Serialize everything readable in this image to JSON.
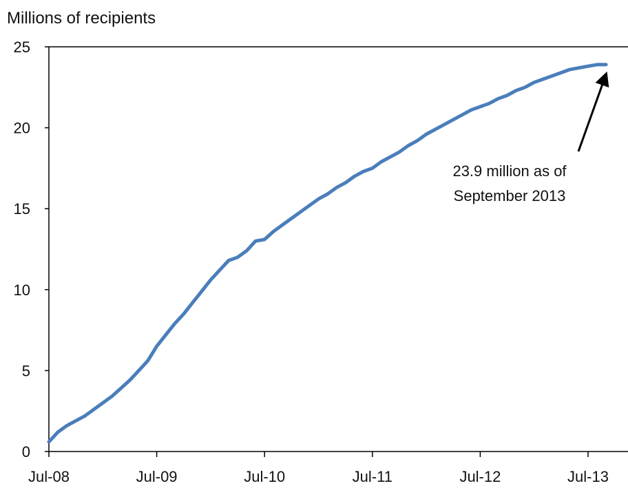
{
  "chart_data": {
    "type": "line",
    "ylabel": "Millions of recipients",
    "xlabel": "",
    "ylim": [
      0,
      25
    ],
    "yticks": [
      0,
      5,
      10,
      15,
      20,
      25
    ],
    "xticks": [
      "Jul-08",
      "Jul-09",
      "Jul-10",
      "Jul-11",
      "Jul-12",
      "Jul-13"
    ],
    "grid": false,
    "x": [
      "Jul-08",
      "Aug-08",
      "Sep-08",
      "Oct-08",
      "Nov-08",
      "Dec-08",
      "Jan-09",
      "Feb-09",
      "Mar-09",
      "Apr-09",
      "May-09",
      "Jun-09",
      "Jul-09",
      "Aug-09",
      "Sep-09",
      "Oct-09",
      "Nov-09",
      "Dec-09",
      "Jan-10",
      "Feb-10",
      "Mar-10",
      "Apr-10",
      "May-10",
      "Jun-10",
      "Jul-10",
      "Aug-10",
      "Sep-10",
      "Oct-10",
      "Nov-10",
      "Dec-10",
      "Jan-11",
      "Feb-11",
      "Mar-11",
      "Apr-11",
      "May-11",
      "Jun-11",
      "Jul-11",
      "Aug-11",
      "Sep-11",
      "Oct-11",
      "Nov-11",
      "Dec-11",
      "Jan-12",
      "Feb-12",
      "Mar-12",
      "Apr-12",
      "May-12",
      "Jun-12",
      "Jul-12",
      "Aug-12",
      "Sep-12",
      "Oct-12",
      "Nov-12",
      "Dec-12",
      "Jan-13",
      "Feb-13",
      "Mar-13",
      "Apr-13",
      "May-13",
      "Jun-13",
      "Jul-13",
      "Aug-13",
      "Sep-13"
    ],
    "series": [
      {
        "color": "#4a7ebb",
        "values": [
          0.6,
          1.2,
          1.6,
          1.9,
          2.2,
          2.6,
          3.0,
          3.4,
          3.9,
          4.4,
          5.0,
          5.6,
          6.5,
          7.2,
          7.9,
          8.5,
          9.2,
          9.9,
          10.6,
          11.2,
          11.8,
          12.0,
          12.4,
          13.0,
          13.1,
          13.6,
          14.0,
          14.4,
          14.8,
          15.2,
          15.6,
          15.9,
          16.3,
          16.6,
          17.0,
          17.3,
          17.5,
          17.9,
          18.2,
          18.5,
          18.9,
          19.2,
          19.6,
          19.9,
          20.2,
          20.5,
          20.8,
          21.1,
          21.3,
          21.5,
          21.8,
          22.0,
          22.3,
          22.5,
          22.8,
          23.0,
          23.2,
          23.4,
          23.6,
          23.7,
          23.8,
          23.9,
          23.9
        ]
      }
    ],
    "annotation": {
      "lines": [
        "23.9 million as of",
        "September 2013"
      ],
      "target_x": "Sep-13",
      "target_y": 23.9
    }
  }
}
